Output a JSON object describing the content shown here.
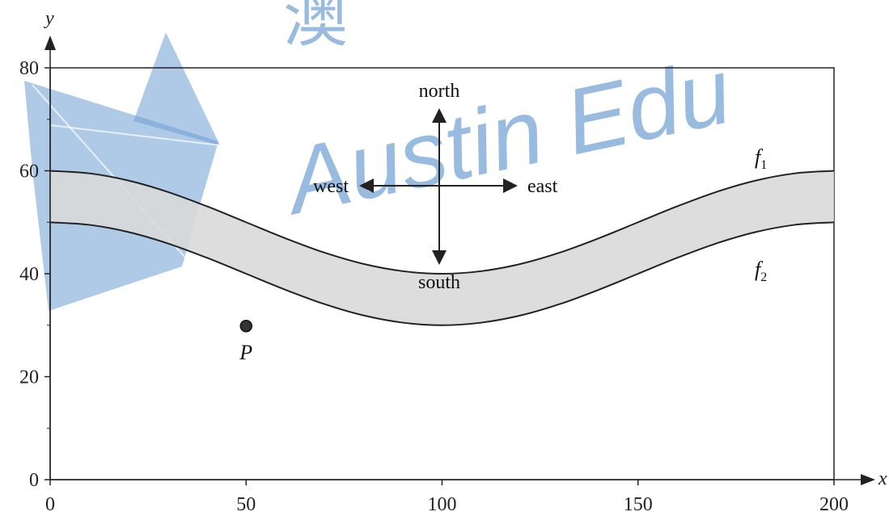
{
  "chart_data": {
    "type": "line",
    "xlabel": "x",
    "ylabel": "y",
    "xlim": [
      0,
      200
    ],
    "ylim": [
      0,
      80
    ],
    "xticks": [
      0,
      50,
      100,
      150,
      200
    ],
    "yticks": [
      0,
      20,
      40,
      60,
      80
    ],
    "series": [
      {
        "name": "f1",
        "x": [
          0,
          10,
          20,
          30,
          40,
          50,
          60,
          70,
          80,
          90,
          100,
          110,
          120,
          130,
          140,
          150,
          160,
          170,
          180,
          190,
          200
        ],
        "y": [
          60,
          59.5,
          58.1,
          55.9,
          53.1,
          50,
          46.9,
          44.1,
          41.9,
          40.5,
          40,
          40.5,
          41.9,
          44.1,
          46.9,
          50,
          53.1,
          55.9,
          58.1,
          59.5,
          60
        ]
      },
      {
        "name": "f2",
        "x": [
          0,
          10,
          20,
          30,
          40,
          50,
          60,
          70,
          80,
          90,
          100,
          110,
          120,
          130,
          140,
          150,
          160,
          170,
          180,
          190,
          200
        ],
        "y": [
          50,
          49.5,
          48.1,
          45.9,
          43.1,
          40,
          36.9,
          34.1,
          31.9,
          30.5,
          30,
          30.5,
          31.9,
          34.1,
          36.9,
          40,
          43.1,
          45.9,
          48.1,
          49.5,
          50
        ]
      }
    ],
    "points": [
      {
        "label": "P",
        "x": 50,
        "y": 30
      }
    ],
    "compass": {
      "north": "north",
      "south": "south",
      "east": "east",
      "west": "west"
    },
    "curve_labels": {
      "f1": {
        "base": "f",
        "sub": "1"
      },
      "f2": {
        "base": "f",
        "sub": "2"
      }
    },
    "grid": false,
    "colors": {
      "band_fill": "#d9d9d9",
      "curve": "#222222",
      "watermark": "#6e9fd4"
    }
  },
  "watermark": {
    "text": "Austin Edu",
    "glyph": "澳"
  }
}
